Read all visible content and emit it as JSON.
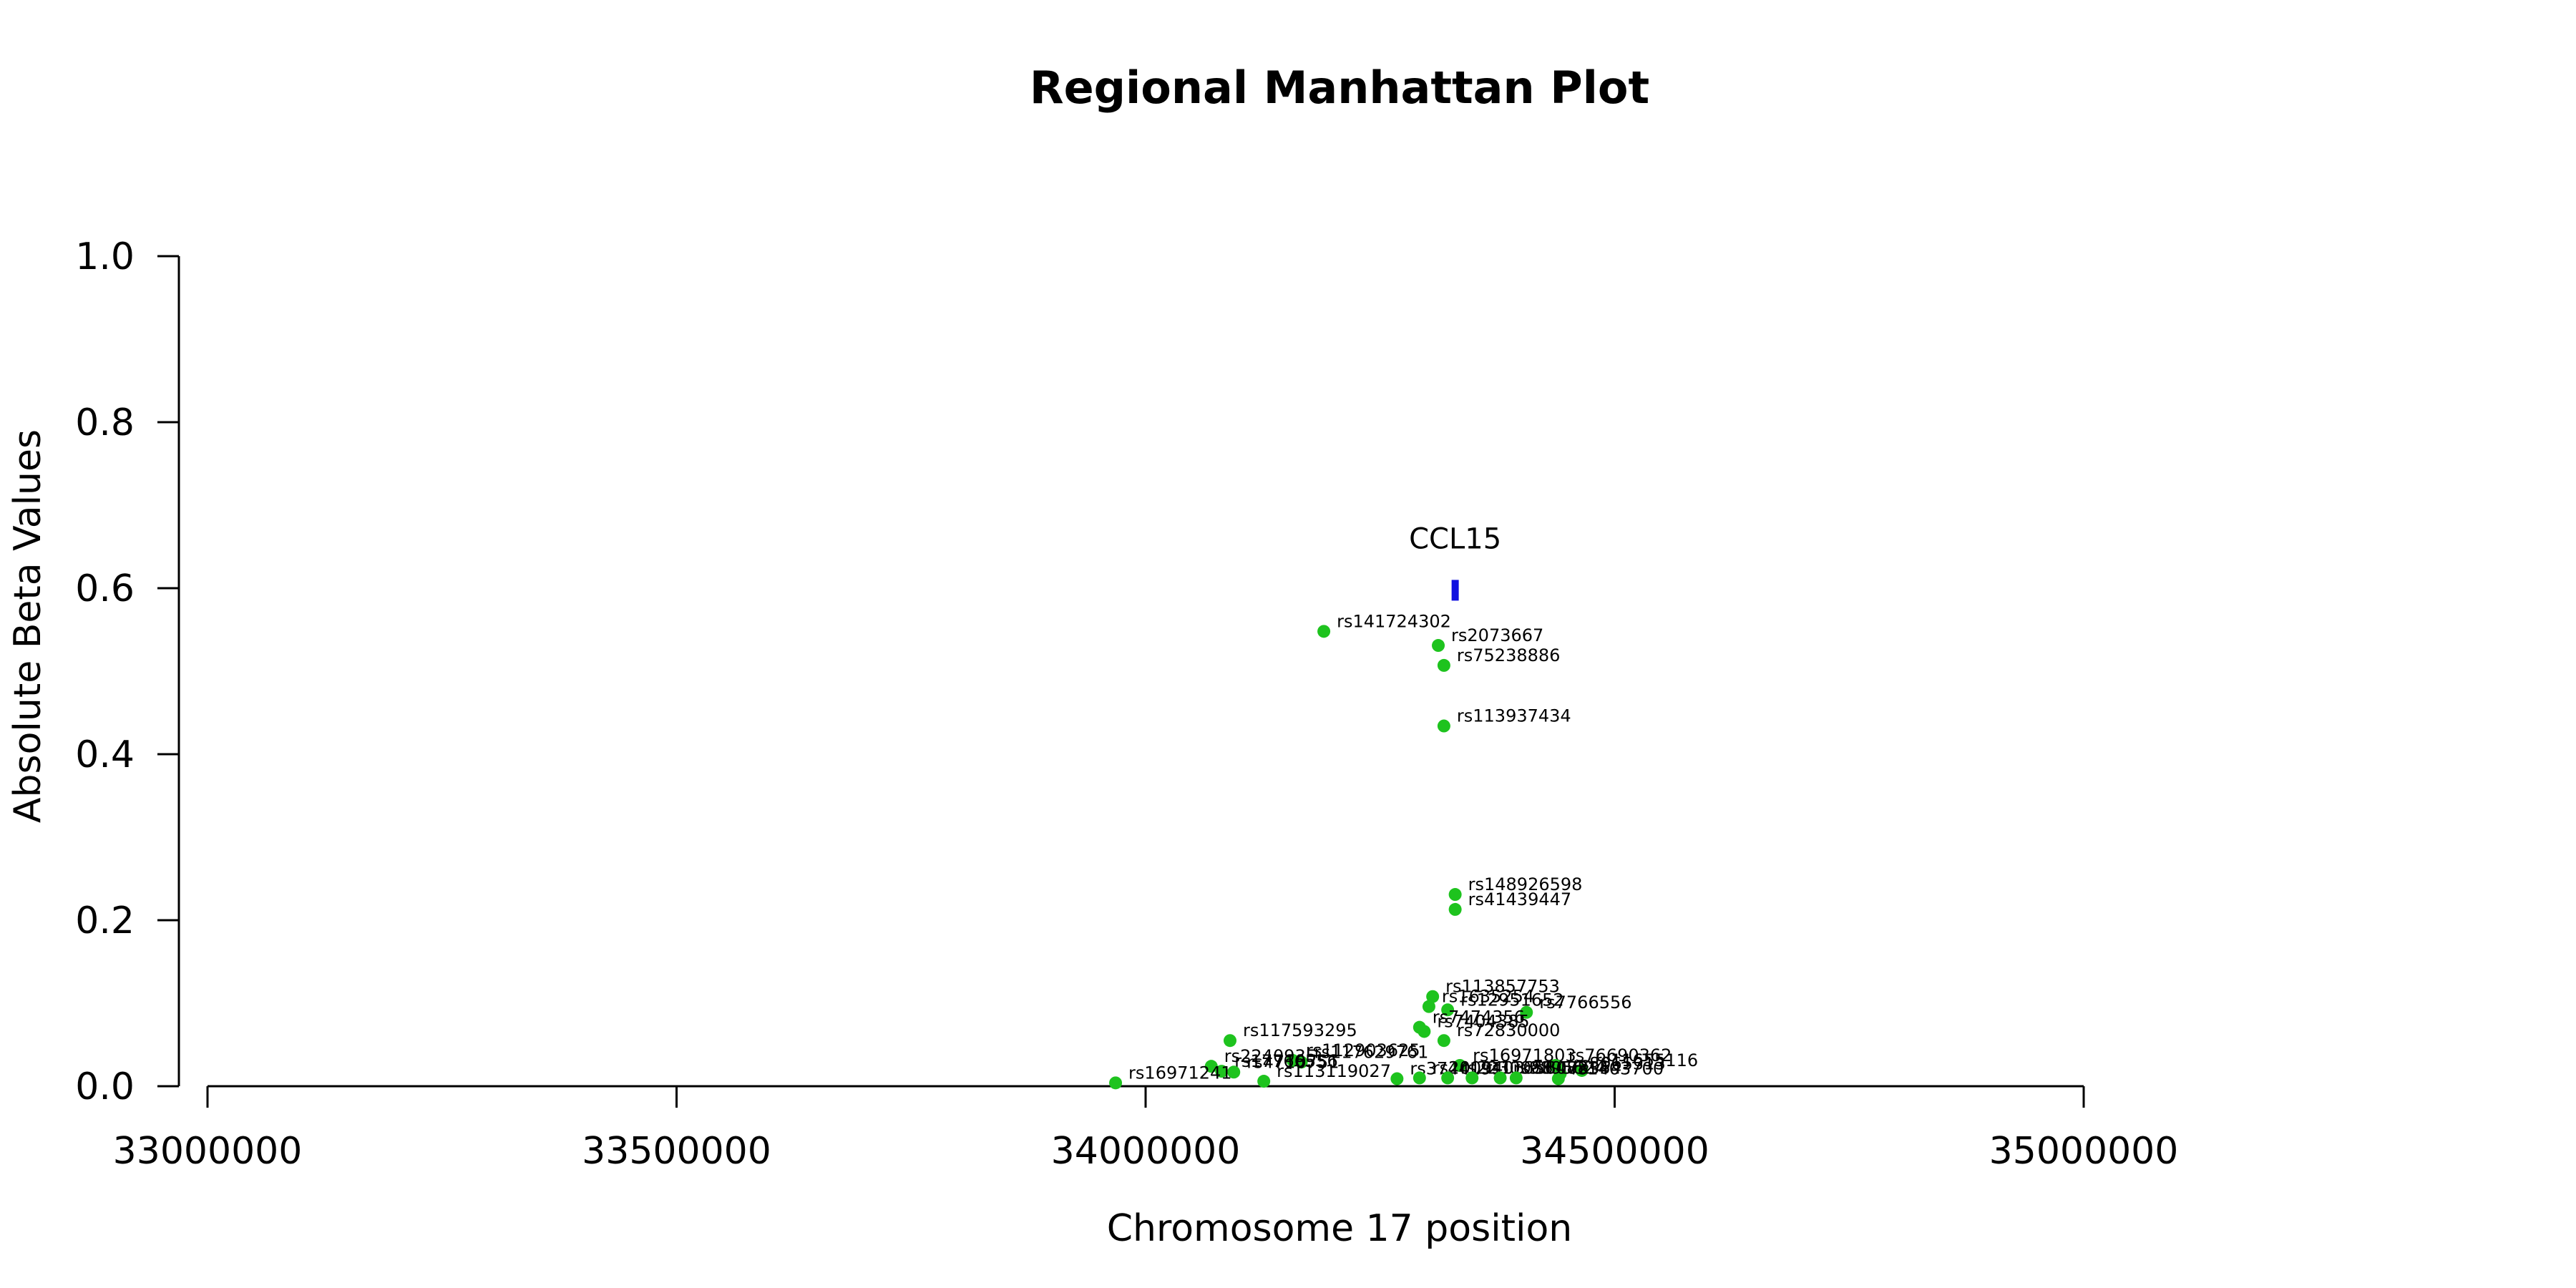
{
  "chart_data": {
    "type": "scatter",
    "title": "Regional Manhattan Plot",
    "xlabel": "Chromosome 17 position",
    "ylabel": "Absolute Beta Values",
    "xlim": [
      33000000,
      35000000
    ],
    "ylim": [
      0,
      1
    ],
    "x_ticks": [
      "33000000",
      "33500000",
      "34000000",
      "34500000",
      "35000000"
    ],
    "y_ticks": [
      "0.0",
      "0.2",
      "0.4",
      "0.6",
      "0.8",
      "1.0"
    ],
    "grid": false,
    "point_color": "#1ec31e",
    "gene": {
      "name": "CCL15",
      "x": 34330000,
      "y_low": 0.585,
      "y_high": 0.61,
      "color": "#1010e0"
    },
    "points": [
      {
        "x": 34190000,
        "y": 0.548,
        "label": "rs141724302"
      },
      {
        "x": 34312000,
        "y": 0.531,
        "label": "rs2073667"
      },
      {
        "x": 34318000,
        "y": 0.507,
        "label": "rs75238886"
      },
      {
        "x": 34318000,
        "y": 0.434,
        "label": "rs113937434"
      },
      {
        "x": 34330000,
        "y": 0.231,
        "label": "rs148926598"
      },
      {
        "x": 34330000,
        "y": 0.213,
        "label": "rs41439447"
      },
      {
        "x": 34306000,
        "y": 0.108,
        "label": "rs113857753"
      },
      {
        "x": 34302000,
        "y": 0.096,
        "label": "rs1635254"
      },
      {
        "x": 34322000,
        "y": 0.092,
        "label": "rs12951652"
      },
      {
        "x": 34406000,
        "y": 0.089,
        "label": "rs7766556"
      },
      {
        "x": 34292000,
        "y": 0.071,
        "label": "rs7474356"
      },
      {
        "x": 34297000,
        "y": 0.066,
        "label": "rs7404385"
      },
      {
        "x": 34318000,
        "y": 0.055,
        "label": "rs72830000"
      },
      {
        "x": 34090000,
        "y": 0.055,
        "label": "rs117593295"
      },
      {
        "x": 34157000,
        "y": 0.031,
        "label": "rs112903625"
      },
      {
        "x": 34166000,
        "y": 0.029,
        "label": "rs117629761"
      },
      {
        "x": 34070000,
        "y": 0.024,
        "label": "rs2240935"
      },
      {
        "x": 34081000,
        "y": 0.018,
        "label": "rs17766556"
      },
      {
        "x": 34094000,
        "y": 0.017,
        "label": "rs4710751"
      },
      {
        "x": 34126000,
        "y": 0.006,
        "label": "rs113119027"
      },
      {
        "x": 33968000,
        "y": 0.004,
        "label": "rs16971241"
      },
      {
        "x": 34335000,
        "y": 0.025,
        "label": "rs16971803"
      },
      {
        "x": 34437000,
        "y": 0.025,
        "label": "rs76690362"
      },
      {
        "x": 34465000,
        "y": 0.019,
        "label": "rs11655116"
      },
      {
        "x": 34442000,
        "y": 0.015,
        "label": "rs8065313"
      },
      {
        "x": 34440000,
        "y": 0.009,
        "label": "rs1403700"
      },
      {
        "x": 34268000,
        "y": 0.009,
        "label": "rs3744191"
      },
      {
        "x": 34292000,
        "y": 0.01,
        "label": "rs2009403"
      },
      {
        "x": 34322000,
        "y": 0.01,
        "label": "rs2230088"
      },
      {
        "x": 34348000,
        "y": 0.01,
        "label": "rs11656488"
      },
      {
        "x": 34378000,
        "y": 0.01,
        "label": "rs9895624"
      },
      {
        "x": 34395000,
        "y": 0.01,
        "label": "rs8072354"
      }
    ]
  }
}
